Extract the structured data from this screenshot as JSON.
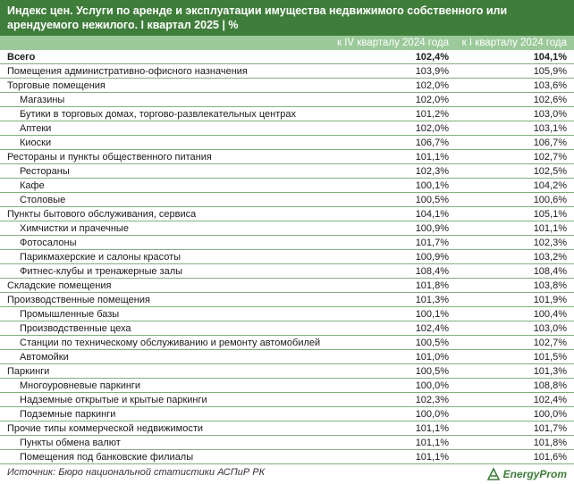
{
  "title": "Индекс цен. Услуги по аренде и эксплуатации имущества недвижимого собственного или арендуемого нежилого. I квартал 2025 | %",
  "columns": [
    "к IV кварталу 2024 года",
    "к I кварталу 2024 года"
  ],
  "rows": [
    {
      "label": "Всего",
      "v1": "102,4%",
      "v2": "104,1%",
      "level": 0,
      "bold": true
    },
    {
      "label": "Помещения административно-офисного назначения",
      "v1": "103,9%",
      "v2": "105,9%",
      "level": 0
    },
    {
      "label": "Торговые помещения",
      "v1": "102,0%",
      "v2": "103,6%",
      "level": 0
    },
    {
      "label": "Магазины",
      "v1": "102,0%",
      "v2": "102,6%",
      "level": 1
    },
    {
      "label": "Бутики в торговых домах, торгово-развлекательных центрах",
      "v1": "101,2%",
      "v2": "103,0%",
      "level": 1
    },
    {
      "label": "Аптеки",
      "v1": "102,0%",
      "v2": "103,1%",
      "level": 1
    },
    {
      "label": "Киоски",
      "v1": "106,7%",
      "v2": "106,7%",
      "level": 1
    },
    {
      "label": "Рестораны и пункты общественного питания",
      "v1": "101,1%",
      "v2": "102,7%",
      "level": 0
    },
    {
      "label": "Рестораны",
      "v1": "102,3%",
      "v2": "102,5%",
      "level": 1
    },
    {
      "label": "Кафе",
      "v1": "100,1%",
      "v2": "104,2%",
      "level": 1
    },
    {
      "label": "Столовые",
      "v1": "100,5%",
      "v2": "100,6%",
      "level": 1
    },
    {
      "label": "Пункты бытового обслуживания, сервиса",
      "v1": "104,1%",
      "v2": "105,1%",
      "level": 0
    },
    {
      "label": "Химчистки и прачечные",
      "v1": "100,9%",
      "v2": "101,1%",
      "level": 1
    },
    {
      "label": "Фотосалоны",
      "v1": "101,7%",
      "v2": "102,3%",
      "level": 1
    },
    {
      "label": "Парикмахерские и салоны красоты",
      "v1": "100,9%",
      "v2": "103,2%",
      "level": 1
    },
    {
      "label": "Фитнес-клубы и тренажерные залы",
      "v1": "108,4%",
      "v2": "108,4%",
      "level": 1
    },
    {
      "label": "Складские помещения",
      "v1": "101,8%",
      "v2": "103,8%",
      "level": 0
    },
    {
      "label": "Производственные помещения",
      "v1": "101,3%",
      "v2": "101,9%",
      "level": 0
    },
    {
      "label": "Промышленные базы",
      "v1": "100,1%",
      "v2": "100,4%",
      "level": 1
    },
    {
      "label": "Производственные цеха",
      "v1": "102,4%",
      "v2": "103,0%",
      "level": 1
    },
    {
      "label": "Станции по техническому обслуживанию и ремонту автомобилей",
      "v1": "100,5%",
      "v2": "102,7%",
      "level": 1
    },
    {
      "label": "Автомойки",
      "v1": "101,0%",
      "v2": "101,5%",
      "level": 1
    },
    {
      "label": "Паркинги",
      "v1": "100,5%",
      "v2": "101,3%",
      "level": 0
    },
    {
      "label": "Многоуровневые паркинги",
      "v1": "100,0%",
      "v2": "108,8%",
      "level": 1
    },
    {
      "label": "Надземные открытые и крытые паркинги",
      "v1": "102,3%",
      "v2": "102,4%",
      "level": 1
    },
    {
      "label": "Подземные паркинги",
      "v1": "100,0%",
      "v2": "100,0%",
      "level": 1
    },
    {
      "label": "Прочие типы коммерческой недвижимости",
      "v1": "101,1%",
      "v2": "101,7%",
      "level": 0
    },
    {
      "label": "Пункты обмена валют",
      "v1": "101,1%",
      "v2": "101,8%",
      "level": 1
    },
    {
      "label": "Помещения под банковские филиалы",
      "v1": "101,1%",
      "v2": "101,6%",
      "level": 1
    }
  ],
  "source": "Источник: Бюро национальной статистики АСПиР РК",
  "brand": "EnergyProm",
  "colors": {
    "title_bg": "#3f7d3a",
    "header_bg": "#9bc99a",
    "row_border": "#7fb07c",
    "brand": "#3f7d3a"
  },
  "icons": {
    "logo": "energyprom-logo-icon"
  }
}
